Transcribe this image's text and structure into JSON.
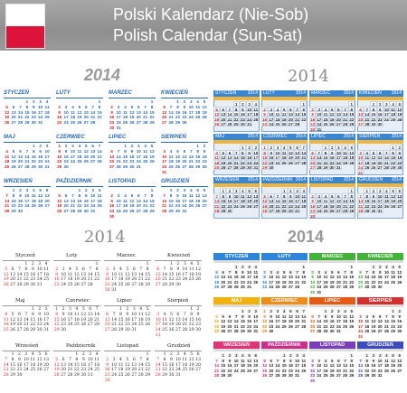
{
  "header": {
    "title_pl": "Polski Kalendarz (Nie-Sob)",
    "title_en": "Polish Calendar (Sun-Sat)"
  },
  "colors": {
    "sunday_red": "#d42020",
    "blue": "#2a68b4",
    "gray": "#9a9a9a",
    "flag_white": "#ffffff",
    "flag_red": "#dc143c",
    "rainbow": [
      "#2f86d8",
      "#2f86d8",
      "#42b23a",
      "#42b23a",
      "#f3b20a",
      "#f08c18",
      "#e85a10",
      "#d42e2e",
      "#e03478",
      "#c9308c",
      "#7a3fb6",
      "#3d4cb8"
    ]
  },
  "calendars": [
    {
      "year": "2014",
      "months": [
        "STYCZEŃ",
        "LUTY",
        "MARZEC",
        "KWIECIEŃ",
        "MAJ",
        "CZERWIEC",
        "LIPIEC",
        "SIERPIEŃ",
        "WRZESIEŃ",
        "PAŹDZIERNIK",
        "LISTOPAD",
        "GRUDZIEŃ"
      ]
    },
    {
      "year": "2014",
      "months": [
        "STYCZEŃ",
        "LUTY",
        "MARZEC",
        "KWIECIEŃ",
        "MAJ",
        "CZERWIEC",
        "LIPIEC",
        "SIERPIEŃ",
        "WRZESIEŃ",
        "PAŹDZIERNIK",
        "LISTOPAD",
        "GRUDZIEŃ"
      ]
    },
    {
      "year": "2014",
      "months": [
        "Styczeń",
        "Luty",
        "Marzec",
        "Kwiecień",
        "Maj",
        "Czerwiec",
        "Lipiec",
        "Sierpień",
        "Wrzesień",
        "Październik",
        "Listopad",
        "Grudzień"
      ]
    },
    {
      "year": "2014",
      "months": [
        "STYCZEŃ",
        "LUTY",
        "MARZEC",
        "KWIECIEŃ",
        "MAJ",
        "CZERWIEC",
        "LIPIEC",
        "SIERPIEŃ",
        "WRZESIEŃ",
        "PAŹDZIERNIK",
        "LISTOPAD",
        "GRUDZIEŃ"
      ]
    }
  ],
  "month_days": [
    {
      "first": 3,
      "days": 31
    },
    {
      "first": 6,
      "days": 28
    },
    {
      "first": 6,
      "days": 31
    },
    {
      "first": 2,
      "days": 30
    },
    {
      "first": 4,
      "days": 31
    },
    {
      "first": 0,
      "days": 30
    },
    {
      "first": 2,
      "days": 31
    },
    {
      "first": 5,
      "days": 31
    },
    {
      "first": 1,
      "days": 30
    },
    {
      "first": 3,
      "days": 31
    },
    {
      "first": 6,
      "days": 30
    },
    {
      "first": 1,
      "days": 31
    }
  ]
}
